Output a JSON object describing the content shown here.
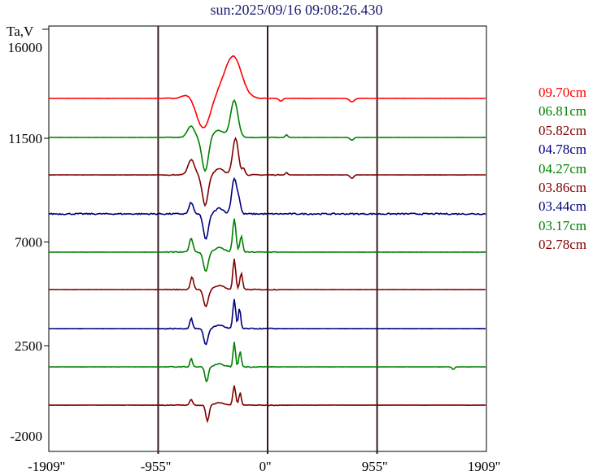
{
  "title": "sun:2025/09/16 09:08:26.430",
  "chart_data": {
    "type": "line",
    "title": "sun:2025/09/16 09:08:26.430",
    "ylabel": "Ta,V",
    "xlabel": "",
    "xlim": [
      -1909,
      1909
    ],
    "ylim": [
      -2000,
      16500
    ],
    "x_ticks": [
      -1909,
      -955,
      0,
      955,
      1909
    ],
    "x_tick_labels": [
      "-1909''",
      "-955''",
      "0''",
      "955''",
      "1909''"
    ],
    "y_ticks": [
      16000,
      11500,
      7000,
      2500,
      -2000
    ],
    "y_tick_labels": [
      "16000",
      "11500",
      "7000",
      "2500",
      "-2000"
    ],
    "vertical_gridlines": [
      -955,
      0,
      955
    ],
    "series": [
      {
        "name": "09.70cm",
        "color": "#ff0000",
        "baseline": 13230,
        "noise": 15,
        "components": [
          [
            -298,
            1800,
            70
          ],
          [
            -561,
            -1300,
            60
          ],
          [
            -688,
            200,
            50
          ],
          [
            -420,
            250,
            60
          ],
          [
            115,
            -120,
            15
          ],
          [
            735,
            -150,
            20
          ]
        ]
      },
      {
        "name": "06.81cm",
        "color": "#008000",
        "baseline": 11536,
        "noise": 15,
        "components": [
          [
            -291,
            1600,
            32
          ],
          [
            -545,
            -1480,
            28
          ],
          [
            -670,
            500,
            30
          ],
          [
            -430,
            300,
            50
          ],
          [
            165,
            120,
            10
          ],
          [
            735,
            -120,
            15
          ]
        ]
      },
      {
        "name": "05.82cm",
        "color": "#800000",
        "baseline": 9910,
        "noise": 20,
        "components": [
          [
            -280,
            1590,
            25
          ],
          [
            -545,
            -1340,
            25
          ],
          [
            -667,
            670,
            28
          ],
          [
            -420,
            280,
            40
          ],
          [
            -210,
            300,
            12
          ],
          [
            165,
            100,
            10
          ],
          [
            735,
            -150,
            15
          ]
        ]
      },
      {
        "name": "04.78cm",
        "color": "#000080",
        "baseline": 8218,
        "noise": 60,
        "components": [
          [
            -291,
            1550,
            22
          ],
          [
            -539,
            -1100,
            22
          ],
          [
            -667,
            500,
            18
          ],
          [
            -420,
            250,
            35
          ],
          [
            -250,
            500,
            15
          ]
        ]
      },
      {
        "name": "04.27cm",
        "color": "#008000",
        "baseline": 6560,
        "noise": 20,
        "components": [
          [
            -291,
            1450,
            14
          ],
          [
            -539,
            -850,
            20
          ],
          [
            -667,
            600,
            16
          ],
          [
            -230,
            700,
            12
          ],
          [
            -420,
            200,
            40
          ]
        ]
      },
      {
        "name": "03.86cm",
        "color": "#800000",
        "baseline": 4935,
        "noise": 20,
        "components": [
          [
            -291,
            1340,
            12
          ],
          [
            -539,
            -740,
            20
          ],
          [
            -660,
            560,
            14
          ],
          [
            -230,
            700,
            12
          ],
          [
            -420,
            180,
            40
          ]
        ]
      },
      {
        "name": "03.44cm",
        "color": "#000080",
        "baseline": 3240,
        "noise": 20,
        "components": [
          [
            -291,
            1270,
            12
          ],
          [
            -539,
            -700,
            18
          ],
          [
            -667,
            460,
            12
          ],
          [
            -245,
            900,
            10
          ],
          [
            -420,
            150,
            40
          ]
        ]
      },
      {
        "name": "03.17cm",
        "color": "#008000",
        "baseline": 1580,
        "noise": 20,
        "components": [
          [
            -291,
            1100,
            10
          ],
          [
            -532,
            -670,
            14
          ],
          [
            -667,
            390,
            10
          ],
          [
            -240,
            700,
            10
          ],
          [
            -420,
            120,
            40
          ],
          [
            1620,
            -120,
            10
          ]
        ]
      },
      {
        "name": "02.78cm",
        "color": "#800000",
        "baseline": -80,
        "noise": 15,
        "components": [
          [
            -291,
            850,
            12
          ],
          [
            -525,
            -700,
            14
          ],
          [
            -667,
            250,
            12
          ],
          [
            -240,
            550,
            10
          ],
          [
            -420,
            100,
            40
          ]
        ]
      }
    ]
  }
}
